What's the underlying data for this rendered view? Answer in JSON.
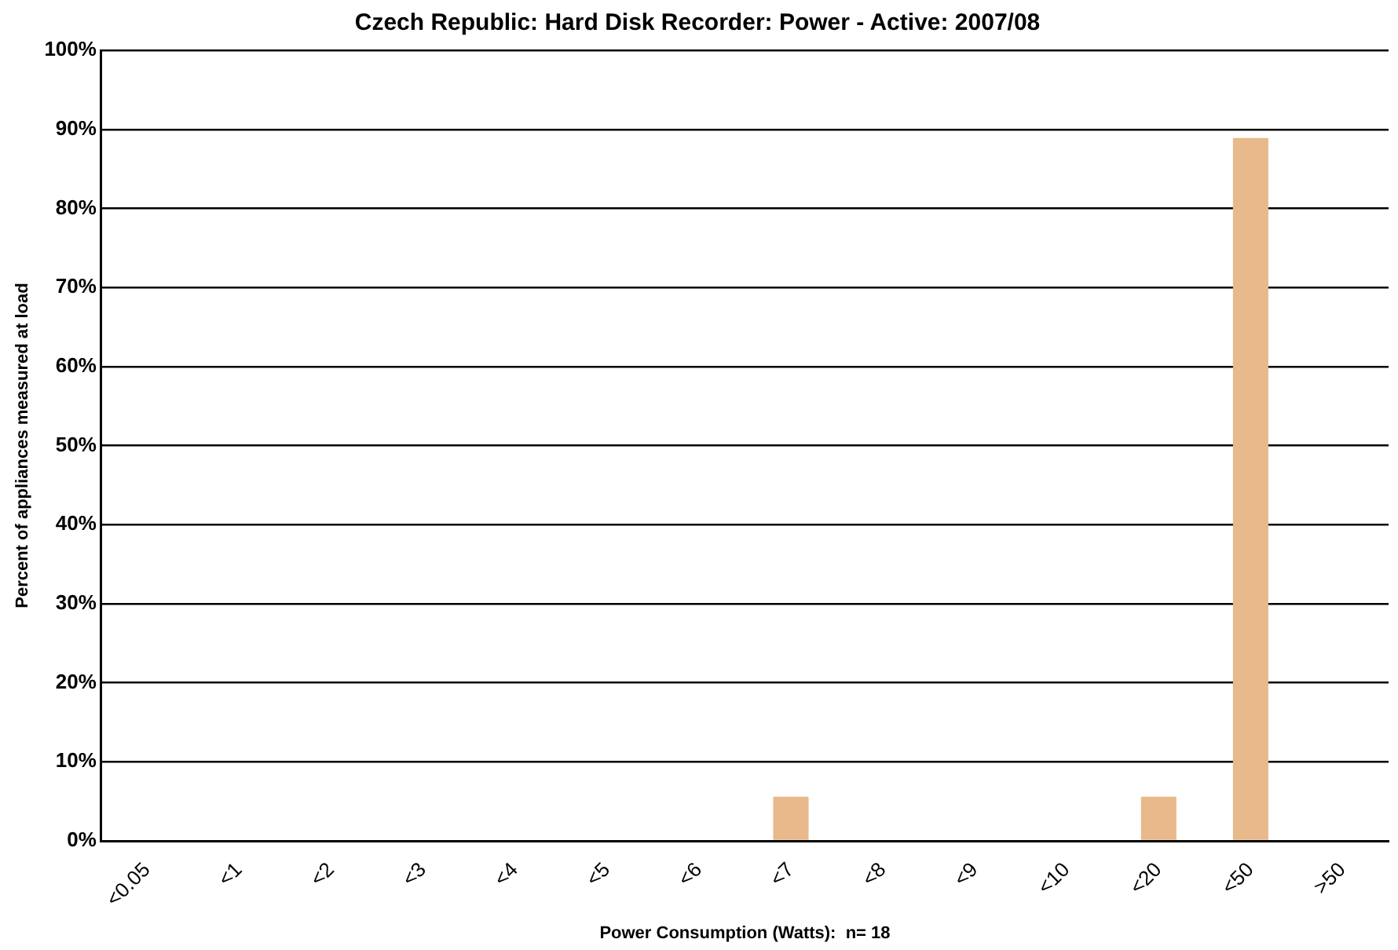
{
  "chart_data": {
    "type": "bar",
    "title": "Czech Republic: Hard Disk Recorder: Power - Active: 2007/08",
    "xlabel": "Power Consumption (Watts):  n= 18",
    "ylabel": "Percent of appliances measured at load",
    "categories": [
      "<0.05",
      "<1",
      "<2",
      "<3",
      "<4",
      "<5",
      "<6",
      "<7",
      "<8",
      "<9",
      "<10",
      "<20",
      "<50",
      ">50"
    ],
    "values": [
      0,
      0,
      0,
      0,
      0,
      0,
      0,
      5.6,
      0,
      0,
      0,
      5.6,
      88.9,
      0
    ],
    "color": "#e8b98a",
    "ylim": [
      0,
      100
    ],
    "yticks": [
      {
        "value": 0,
        "label": "0%"
      },
      {
        "value": 10,
        "label": "10%"
      },
      {
        "value": 20,
        "label": "20%"
      },
      {
        "value": 30,
        "label": "30%"
      },
      {
        "value": 40,
        "label": "40%"
      },
      {
        "value": 50,
        "label": "50%"
      },
      {
        "value": 60,
        "label": "60%"
      },
      {
        "value": 70,
        "label": "70%"
      },
      {
        "value": 80,
        "label": "80%"
      },
      {
        "value": 90,
        "label": "90%"
      },
      {
        "value": 100,
        "label": "100%"
      }
    ],
    "grid": "y",
    "legend": false
  }
}
